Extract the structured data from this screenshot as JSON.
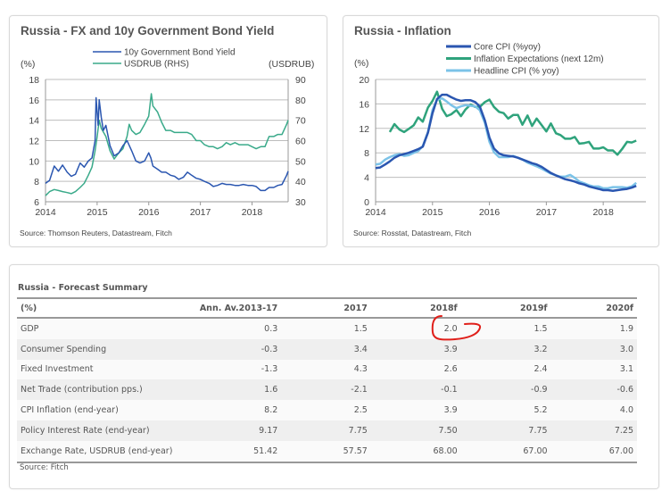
{
  "fx_panel": {
    "title": "Russia - FX and 10y Government Bond Yield",
    "source": "Source: Thomson Reuters, Datastream, Fitch"
  },
  "inflation_panel": {
    "title": "Russia - Inflation",
    "source": "Source: Rosstat, Datastream, Fitch"
  },
  "forecast_table": {
    "title": "Russia - Forecast Summary",
    "columns": [
      "(%)",
      "Ann. Av.2013-17",
      "2017",
      "2018f",
      "2019f",
      "2020f"
    ],
    "rows": [
      {
        "label": "GDP",
        "values": [
          "0.3",
          "1.5",
          "2.0",
          "1.5",
          "1.9"
        ]
      },
      {
        "label": "Consumer Spending",
        "values": [
          "-0.3",
          "3.4",
          "3.9",
          "3.2",
          "3.0"
        ]
      },
      {
        "label": "Fixed Investment",
        "values": [
          "-1.3",
          "4.3",
          "2.6",
          "2.4",
          "3.1"
        ]
      },
      {
        "label": "Net Trade (contribution pps.)",
        "values": [
          "1.6",
          "-2.1",
          "-0.1",
          "-0.9",
          "-0.6"
        ]
      },
      {
        "label": "CPI Inflation (end-year)",
        "values": [
          "8.2",
          "2.5",
          "3.9",
          "5.2",
          "4.0"
        ]
      },
      {
        "label": "Policy Interest Rate (end-year)",
        "values": [
          "9.17",
          "7.75",
          "7.50",
          "7.75",
          "7.25"
        ]
      },
      {
        "label": "Exchange Rate, USDRUB (end-year)",
        "values": [
          "51.42",
          "57.57",
          "68.00",
          "67.00",
          "67.00"
        ]
      }
    ],
    "source": "Source: Fitch",
    "annotation": {
      "type": "hand-drawn red circle",
      "target": "GDP 2018f",
      "color": "#e0201b"
    }
  },
  "chart_data": [
    {
      "type": "line",
      "title": "Russia - FX and 10y Government Bond Yield",
      "ylabel": "(%)",
      "y2label": "(USDRUB)",
      "xlim": [
        2014.0,
        2018.7
      ],
      "ylim": [
        6,
        18
      ],
      "y2lim": [
        30,
        90
      ],
      "xticks": [
        "2014",
        "2015",
        "2016",
        "2017",
        "2018"
      ],
      "yticks": [
        "6",
        "8",
        "10",
        "12",
        "14",
        "16",
        "18"
      ],
      "y2ticks": [
        "30",
        "40",
        "50",
        "60",
        "70",
        "80",
        "90"
      ],
      "grid": true,
      "legend": "top-center",
      "series": [
        {
          "name": "10y Government Bond Yield",
          "axis": "left",
          "color": "#2a56b0",
          "x": [
            2014.0,
            2014.08,
            2014.17,
            2014.25,
            2014.33,
            2014.42,
            2014.5,
            2014.58,
            2014.67,
            2014.75,
            2014.83,
            2014.9,
            2014.96,
            2014.98,
            2015.02,
            2015.04,
            2015.08,
            2015.12,
            2015.17,
            2015.25,
            2015.33,
            2015.42,
            2015.5,
            2015.58,
            2015.67,
            2015.75,
            2015.83,
            2015.92,
            2016.0,
            2016.04,
            2016.08,
            2016.17,
            2016.25,
            2016.33,
            2016.42,
            2016.5,
            2016.58,
            2016.67,
            2016.75,
            2016.83,
            2016.92,
            2017.0,
            2017.08,
            2017.17,
            2017.25,
            2017.33,
            2017.42,
            2017.5,
            2017.58,
            2017.67,
            2017.75,
            2017.83,
            2017.92,
            2018.0,
            2018.08,
            2018.17,
            2018.25,
            2018.33,
            2018.42,
            2018.5,
            2018.58,
            2018.67,
            2018.7
          ],
          "values": [
            7.8,
            8.1,
            9.5,
            9.0,
            9.6,
            8.9,
            8.5,
            8.7,
            9.8,
            9.4,
            10.0,
            10.3,
            12.0,
            16.2,
            13.5,
            16.0,
            14.3,
            13.0,
            13.5,
            11.5,
            10.5,
            10.8,
            11.5,
            12.0,
            11.0,
            10.0,
            9.8,
            10.0,
            10.8,
            10.3,
            9.5,
            9.2,
            8.9,
            8.9,
            8.6,
            8.5,
            8.2,
            8.4,
            8.9,
            8.6,
            8.3,
            8.2,
            8.0,
            7.8,
            7.5,
            7.6,
            7.8,
            7.7,
            7.7,
            7.6,
            7.6,
            7.7,
            7.6,
            7.6,
            7.5,
            7.1,
            7.1,
            7.4,
            7.4,
            7.6,
            7.7,
            8.6,
            9.0
          ]
        },
        {
          "name": "USDRUB (RHS)",
          "axis": "right",
          "color": "#3aaa8a",
          "x": [
            2014.0,
            2014.08,
            2014.17,
            2014.25,
            2014.33,
            2014.42,
            2014.5,
            2014.58,
            2014.67,
            2014.75,
            2014.83,
            2014.9,
            2014.96,
            2015.0,
            2015.04,
            2015.08,
            2015.17,
            2015.25,
            2015.33,
            2015.42,
            2015.5,
            2015.58,
            2015.62,
            2015.67,
            2015.75,
            2015.83,
            2015.92,
            2016.0,
            2016.05,
            2016.08,
            2016.17,
            2016.25,
            2016.33,
            2016.42,
            2016.5,
            2016.58,
            2016.67,
            2016.75,
            2016.83,
            2016.92,
            2017.0,
            2017.08,
            2017.17,
            2017.25,
            2017.33,
            2017.42,
            2017.5,
            2017.58,
            2017.67,
            2017.75,
            2017.83,
            2017.92,
            2018.0,
            2018.08,
            2018.17,
            2018.25,
            2018.33,
            2018.42,
            2018.5,
            2018.58,
            2018.67,
            2018.7
          ],
          "values": [
            33,
            35,
            36,
            35.5,
            35,
            34.5,
            34,
            35,
            37,
            39,
            43,
            47,
            55,
            62,
            70,
            66,
            62,
            55,
            51,
            54,
            56,
            62,
            68,
            65,
            63,
            64,
            68,
            72,
            83,
            77,
            74,
            69,
            65,
            65,
            64,
            64,
            64,
            64,
            63,
            60,
            60,
            58,
            57,
            57,
            56,
            57,
            59,
            58,
            59,
            58,
            58,
            58,
            57,
            56,
            57,
            57,
            62,
            62,
            63,
            63,
            68,
            70
          ]
        }
      ]
    },
    {
      "type": "line",
      "title": "Russia - Inflation",
      "ylabel": "(%)",
      "xlim": [
        2014.0,
        2018.75
      ],
      "ylim": [
        0,
        20
      ],
      "xticks": [
        "2014",
        "2015",
        "2016",
        "2017",
        "2018"
      ],
      "yticks": [
        "0",
        "4",
        "8",
        "12",
        "16",
        "20"
      ],
      "grid": true,
      "legend": "top-center",
      "series": [
        {
          "name": "Core CPI (%yoy)",
          "color": "#2a56b0",
          "x": [
            2014.0,
            2014.08,
            2014.17,
            2014.25,
            2014.33,
            2014.42,
            2014.5,
            2014.58,
            2014.67,
            2014.75,
            2014.83,
            2014.92,
            2015.0,
            2015.08,
            2015.17,
            2015.25,
            2015.33,
            2015.42,
            2015.5,
            2015.58,
            2015.67,
            2015.75,
            2015.83,
            2015.92,
            2016.0,
            2016.08,
            2016.17,
            2016.25,
            2016.33,
            2016.42,
            2016.5,
            2016.58,
            2016.67,
            2016.75,
            2016.83,
            2016.92,
            2017.0,
            2017.08,
            2017.17,
            2017.25,
            2017.33,
            2017.42,
            2017.5,
            2017.58,
            2017.67,
            2017.75,
            2017.83,
            2017.92,
            2018.0,
            2018.08,
            2018.17,
            2018.25,
            2018.33,
            2018.42,
            2018.5,
            2018.58
          ],
          "values": [
            5.5,
            5.6,
            6.1,
            6.6,
            7.2,
            7.6,
            7.8,
            8.0,
            8.3,
            8.6,
            9.0,
            11.3,
            14.5,
            16.8,
            17.5,
            17.5,
            17.1,
            16.7,
            16.5,
            16.6,
            16.6,
            16.3,
            15.6,
            13.3,
            10.5,
            8.7,
            7.9,
            7.6,
            7.5,
            7.4,
            7.2,
            6.9,
            6.6,
            6.3,
            6.1,
            5.7,
            5.2,
            4.7,
            4.3,
            4.0,
            3.7,
            3.5,
            3.3,
            3.0,
            2.8,
            2.5,
            2.3,
            2.1,
            1.9,
            1.9,
            1.8,
            1.9,
            2.0,
            2.1,
            2.3,
            2.6
          ]
        },
        {
          "name": "Inflation Expectations (next 12m)",
          "color": "#2fa37c",
          "x": [
            2014.25,
            2014.33,
            2014.42,
            2014.5,
            2014.58,
            2014.67,
            2014.75,
            2014.83,
            2014.92,
            2015.0,
            2015.08,
            2015.17,
            2015.25,
            2015.33,
            2015.42,
            2015.5,
            2015.58,
            2015.67,
            2015.75,
            2015.83,
            2015.92,
            2016.0,
            2016.08,
            2016.17,
            2016.25,
            2016.33,
            2016.42,
            2016.5,
            2016.58,
            2016.67,
            2016.75,
            2016.83,
            2016.92,
            2017.0,
            2017.08,
            2017.17,
            2017.25,
            2017.33,
            2017.42,
            2017.5,
            2017.58,
            2017.67,
            2017.75,
            2017.83,
            2017.92,
            2018.0,
            2018.08,
            2018.17,
            2018.25,
            2018.33,
            2018.42,
            2018.5,
            2018.58
          ],
          "values": [
            11.4,
            12.7,
            11.8,
            11.4,
            11.9,
            12.5,
            13.8,
            13.1,
            15.4,
            16.5,
            18.0,
            15.2,
            14.0,
            14.3,
            15.0,
            14.0,
            15.1,
            15.9,
            15.5,
            15.5,
            16.3,
            16.7,
            15.5,
            14.7,
            14.5,
            13.6,
            14.2,
            14.2,
            12.6,
            14.1,
            12.4,
            13.6,
            12.5,
            11.5,
            12.8,
            11.2,
            10.9,
            10.3,
            10.3,
            10.6,
            9.5,
            9.6,
            9.8,
            8.7,
            8.7,
            8.9,
            8.4,
            8.4,
            7.7,
            8.6,
            9.8,
            9.7,
            10.0
          ]
        },
        {
          "name": "Headline CPI (% yoy)",
          "color": "#7cc3e8",
          "x": [
            2014.0,
            2014.08,
            2014.17,
            2014.25,
            2014.33,
            2014.42,
            2014.5,
            2014.58,
            2014.67,
            2014.75,
            2014.83,
            2014.92,
            2015.0,
            2015.08,
            2015.17,
            2015.25,
            2015.33,
            2015.42,
            2015.5,
            2015.58,
            2015.67,
            2015.75,
            2015.83,
            2015.92,
            2016.0,
            2016.08,
            2016.17,
            2016.25,
            2016.33,
            2016.42,
            2016.5,
            2016.58,
            2016.67,
            2016.75,
            2016.83,
            2016.92,
            2017.0,
            2017.08,
            2017.17,
            2017.25,
            2017.33,
            2017.42,
            2017.5,
            2017.58,
            2017.67,
            2017.75,
            2017.83,
            2017.92,
            2018.0,
            2018.08,
            2018.17,
            2018.25,
            2018.33,
            2018.42,
            2018.5,
            2018.58
          ],
          "values": [
            6.1,
            6.2,
            6.9,
            7.3,
            7.6,
            7.8,
            7.5,
            7.6,
            8.0,
            8.3,
            9.1,
            11.4,
            15.0,
            16.7,
            16.9,
            16.4,
            15.8,
            15.3,
            15.6,
            15.8,
            15.7,
            15.6,
            15.0,
            12.9,
            9.8,
            8.1,
            7.3,
            7.3,
            7.3,
            7.5,
            7.2,
            6.9,
            6.4,
            6.1,
            5.8,
            5.4,
            5.0,
            4.6,
            4.3,
            4.1,
            4.1,
            4.4,
            3.9,
            3.3,
            3.0,
            2.7,
            2.5,
            2.5,
            2.2,
            2.2,
            2.4,
            2.4,
            2.4,
            2.3,
            2.5,
            3.1
          ]
        }
      ]
    }
  ]
}
